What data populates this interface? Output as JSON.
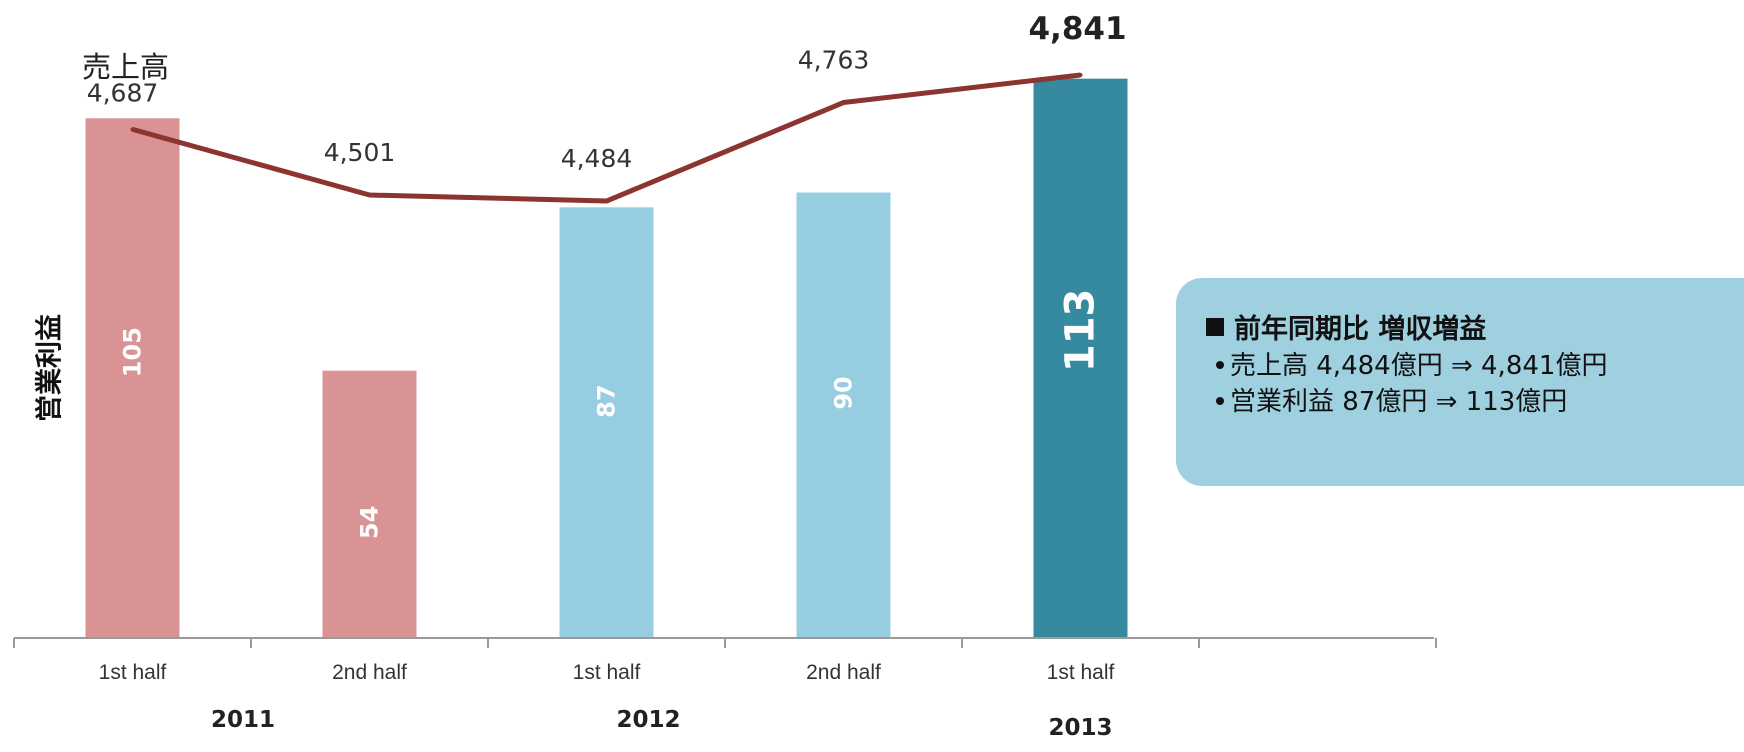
{
  "chart_data": {
    "type": "bar",
    "categories": [
      "1st half",
      "2nd half",
      "1st half",
      "2nd half",
      "1st half"
    ],
    "years": [
      "2011",
      "2012",
      "2013"
    ],
    "series": [
      {
        "name": "営業利益",
        "type": "bar",
        "values": [
          105,
          54,
          87,
          90,
          113
        ]
      },
      {
        "name": "売上高",
        "type": "line",
        "values": [
          4687,
          4501,
          4484,
          4763,
          4841
        ]
      }
    ],
    "bar_value_labels": [
      "105",
      "54",
      "87",
      "90",
      "113"
    ],
    "line_value_labels": [
      "4,687",
      "4,501",
      "4,484",
      "4,763",
      "4,841"
    ],
    "grid": false,
    "colors": {
      "bar_2011": "#d99394",
      "bar_2012": "#97cde0",
      "bar_2013": "#358aa0",
      "line": "#8b3430"
    }
  },
  "callout": {
    "title": "前年同期比 増収増益",
    "bullets": [
      "売上高 4,484億円 ⇒ 4,841億円",
      "営業利益 87億円 ⇒ 113億円"
    ],
    "background": "#9fd0df"
  }
}
